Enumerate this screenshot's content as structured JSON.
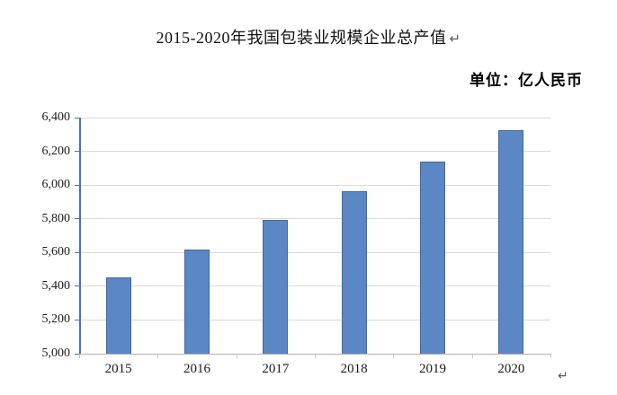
{
  "page": {
    "title": "2015-2020年我国包装业规模企业总产值",
    "unit_label": "单位：亿人民币",
    "return_mark": "↵"
  },
  "chart_data": {
    "type": "bar",
    "title": "2015-2020年我国包装业规模企业总产值",
    "unit": "亿人民币",
    "categories": [
      "2015",
      "2016",
      "2017",
      "2018",
      "2019",
      "2020"
    ],
    "values": [
      5455,
      5620,
      5795,
      5965,
      6140,
      6325
    ],
    "ylim": [
      5000,
      6400
    ],
    "ytick_step": 200,
    "ytick_labels": [
      "5,000",
      "5,200",
      "5,400",
      "5,600",
      "5,800",
      "6,000",
      "6,200",
      "6,400"
    ],
    "grid": true,
    "legend": "none",
    "colors": {
      "bar_fill": "#5b87c5",
      "bar_border": "#41699e",
      "y_axis": "#4472c4",
      "gridline": "#d9d9d9",
      "x_axis": "#b3b3b3",
      "x_tick": "#c9c9c9"
    }
  }
}
